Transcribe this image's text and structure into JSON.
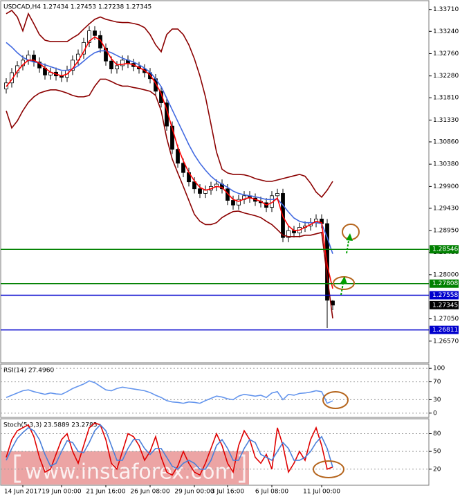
{
  "watermark": "www.instaforex.com",
  "chart_data": [
    {
      "type": "candlestick",
      "title": "USDCAD,H4  1.27434 1.27453 1.27238 1.27345",
      "ylim": [
        1.2612,
        1.3387
      ],
      "yticks": [
        {
          "value": 1.3371,
          "label": "1.33710"
        },
        {
          "value": 1.3324,
          "label": "1.33240"
        },
        {
          "value": 1.3276,
          "label": "1.32760"
        },
        {
          "value": 1.3228,
          "label": "1.32280"
        },
        {
          "value": 1.3181,
          "label": "1.31810"
        },
        {
          "value": 1.3133,
          "label": "1.31330"
        },
        {
          "value": 1.3086,
          "label": "1.30860"
        },
        {
          "value": 1.3038,
          "label": "1.30380"
        },
        {
          "value": 1.299,
          "label": "1.29900"
        },
        {
          "value": 1.2943,
          "label": "1.29430"
        },
        {
          "value": 1.2895,
          "label": "1.28950"
        },
        {
          "value": 1.2848,
          "label": "1.28480"
        },
        {
          "value": 1.28,
          "label": "1.28000"
        },
        {
          "value": 1.2705,
          "label": "1.27050"
        },
        {
          "value": 1.2657,
          "label": "1.26570"
        }
      ],
      "open": [
        1.32,
        1.3213,
        1.3235,
        1.325,
        1.3262,
        1.3273,
        1.3258,
        1.3245,
        1.323,
        1.3236,
        1.3228,
        1.3225,
        1.324,
        1.3262,
        1.3275,
        1.33,
        1.3325,
        1.3315,
        1.3288,
        1.326,
        1.3243,
        1.325,
        1.3262,
        1.3255,
        1.3248,
        1.3243,
        1.3235,
        1.3222,
        1.3195,
        1.317,
        1.312,
        1.307,
        1.304,
        1.302,
        1.3,
        1.2985,
        1.2975,
        1.2982,
        1.299,
        1.2995,
        1.2985,
        1.296,
        1.295,
        1.2962,
        1.297,
        1.2965,
        1.2958,
        1.2955,
        1.2945,
        1.297,
        1.2975,
        1.288,
        1.2895,
        1.289,
        1.2902,
        1.2905,
        1.2912,
        1.292,
        1.291,
        1.27434
      ],
      "high": [
        1.3223,
        1.3245,
        1.326,
        1.3272,
        1.3283,
        1.3283,
        1.3268,
        1.3255,
        1.3246,
        1.3246,
        1.3238,
        1.325,
        1.3272,
        1.3285,
        1.331,
        1.3335,
        1.3335,
        1.3325,
        1.3298,
        1.327,
        1.326,
        1.3272,
        1.3272,
        1.3265,
        1.3258,
        1.3253,
        1.3245,
        1.3232,
        1.3205,
        1.318,
        1.313,
        1.308,
        1.305,
        1.303,
        1.301,
        1.2995,
        1.2992,
        1.3,
        1.3005,
        1.3005,
        1.2995,
        1.297,
        1.2972,
        1.298,
        1.298,
        1.2975,
        1.2968,
        1.2965,
        1.298,
        1.2985,
        1.2985,
        1.2905,
        1.2905,
        1.2912,
        1.2915,
        1.2922,
        1.293,
        1.293,
        1.292,
        1.27453
      ],
      "low": [
        1.319,
        1.3203,
        1.3225,
        1.324,
        1.3252,
        1.3248,
        1.3235,
        1.322,
        1.322,
        1.3218,
        1.3215,
        1.3215,
        1.323,
        1.3252,
        1.3265,
        1.329,
        1.3305,
        1.3278,
        1.325,
        1.3233,
        1.3233,
        1.324,
        1.3245,
        1.3238,
        1.3233,
        1.3225,
        1.3212,
        1.3185,
        1.316,
        1.311,
        1.306,
        1.303,
        1.301,
        1.299,
        1.2975,
        1.2965,
        1.2965,
        1.2972,
        1.298,
        1.2975,
        1.295,
        1.294,
        1.294,
        1.2952,
        1.2955,
        1.2948,
        1.2945,
        1.2935,
        1.2935,
        1.296,
        1.287,
        1.287,
        1.288,
        1.288,
        1.2892,
        1.2895,
        1.2902,
        1.29,
        1.2685,
        1.27238
      ],
      "close": [
        1.3213,
        1.3235,
        1.325,
        1.3262,
        1.3273,
        1.3258,
        1.3245,
        1.323,
        1.3236,
        1.3228,
        1.3225,
        1.324,
        1.3262,
        1.3275,
        1.33,
        1.3325,
        1.3315,
        1.3288,
        1.326,
        1.3243,
        1.325,
        1.3262,
        1.3255,
        1.3248,
        1.3243,
        1.3235,
        1.3222,
        1.3195,
        1.317,
        1.312,
        1.307,
        1.304,
        1.302,
        1.3,
        1.2985,
        1.2975,
        1.2982,
        1.299,
        1.2995,
        1.2985,
        1.296,
        1.295,
        1.2962,
        1.297,
        1.2965,
        1.2958,
        1.2955,
        1.2945,
        1.297,
        1.2975,
        1.288,
        1.2895,
        1.289,
        1.2902,
        1.2905,
        1.2912,
        1.292,
        1.291,
        1.2745,
        1.27345
      ],
      "series": [
        {
          "color": "#8b0000",
          "values": [
            1.3362,
            1.3369,
            1.3355,
            1.3325,
            1.3362,
            1.334,
            1.3317,
            1.3305,
            1.3302,
            1.3302,
            1.3302,
            1.3302,
            1.331,
            1.3317,
            1.3329,
            1.334,
            1.335,
            1.3355,
            1.335,
            1.3347,
            1.3344,
            1.3343,
            1.3343,
            1.3341,
            1.3338,
            1.3332,
            1.3317,
            1.3295,
            1.328,
            1.3317,
            1.3329,
            1.3329,
            1.3317,
            1.3295,
            1.3265,
            1.3228,
            1.3183,
            1.3124,
            1.3064,
            1.3027,
            1.3019,
            1.3016,
            1.3016,
            1.3015,
            1.3012,
            1.3007,
            1.3004,
            1.3001,
            1.3001,
            1.3004,
            1.3007,
            1.301,
            1.3013,
            1.3016,
            1.3012,
            1.2997,
            1.2978,
            1.2967,
            1.2982,
            1.3001
          ]
        },
        {
          "color": "#8b0000",
          "values": [
            1.3153,
            1.3116,
            1.3131,
            1.3153,
            1.3171,
            1.3183,
            1.3191,
            1.3195,
            1.3198,
            1.3198,
            1.3195,
            1.3191,
            1.3186,
            1.3183,
            1.3183,
            1.3186,
            1.3206,
            1.3221,
            1.3221,
            1.3216,
            1.321,
            1.3206,
            1.3206,
            1.3203,
            1.3201,
            1.3198,
            1.3195,
            1.3186,
            1.3153,
            1.3094,
            1.3049,
            1.3019,
            1.299,
            1.296,
            1.293,
            1.2915,
            1.2908,
            1.2908,
            1.2912,
            1.2923,
            1.293,
            1.2936,
            1.2937,
            1.2933,
            1.293,
            1.2927,
            1.2923,
            1.2915,
            1.2908,
            1.2897,
            1.2885,
            1.2882,
            1.2882,
            1.2882,
            1.2885,
            1.2885,
            1.2888,
            1.2891,
            1.2796,
            1.2706
          ]
        },
        {
          "color": "#4169e1",
          "values": [
            1.33,
            1.329,
            1.3278,
            1.3268,
            1.3262,
            1.3258,
            1.3256,
            1.3252,
            1.3248,
            1.3244,
            1.324,
            1.324,
            1.3243,
            1.325,
            1.326,
            1.327,
            1.3278,
            1.3282,
            1.3282,
            1.3278,
            1.3272,
            1.3266,
            1.3262,
            1.3258,
            1.3252,
            1.3245,
            1.3236,
            1.3222,
            1.3205,
            1.318,
            1.3155,
            1.313,
            1.3105,
            1.308,
            1.3058,
            1.304,
            1.3025,
            1.3012,
            1.3002,
            1.2995,
            1.2988,
            1.298,
            1.2975,
            1.2972,
            1.297,
            1.2968,
            1.2965,
            1.2962,
            1.2962,
            1.2963,
            1.295,
            1.2935,
            1.2922,
            1.2915,
            1.2912,
            1.2912,
            1.2912,
            1.291,
            1.288,
            1.2845
          ]
        },
        {
          "color": "#ff0000",
          "values": [
            1.3205,
            1.322,
            1.3238,
            1.3252,
            1.3262,
            1.3262,
            1.3255,
            1.3245,
            1.3236,
            1.3232,
            1.3228,
            1.3232,
            1.3244,
            1.326,
            1.328,
            1.3303,
            1.3312,
            1.3305,
            1.3285,
            1.3265,
            1.3252,
            1.3253,
            1.3255,
            1.3252,
            1.3246,
            1.324,
            1.323,
            1.3212,
            1.319,
            1.3155,
            1.3115,
            1.3075,
            1.3045,
            1.302,
            1.3002,
            1.2988,
            1.2982,
            1.2985,
            1.299,
            1.2988,
            1.2975,
            1.2962,
            1.2958,
            1.2963,
            1.2966,
            1.2962,
            1.2958,
            1.295,
            1.2955,
            1.2965,
            1.2925,
            1.2905,
            1.2895,
            1.2896,
            1.2902,
            1.2908,
            1.2915,
            1.2912,
            1.282,
            1.277
          ]
        }
      ],
      "levels": [
        {
          "value": 1.28546,
          "color": "#008000"
        },
        {
          "value": 1.27808,
          "color": "#008000"
        },
        {
          "value": 1.27558,
          "color": "#0000cd"
        },
        {
          "value": 1.26811,
          "color": "#0000cd"
        }
      ],
      "current_price": 1.27345
    },
    {
      "type": "line",
      "title": "RSI(14) 27.4960",
      "ylim": [
        -8,
        108
      ],
      "yticks": [
        100,
        70,
        30,
        0
      ],
      "grid": true,
      "series": [
        {
          "color": "#6495ed",
          "values": [
            35,
            40,
            45,
            50,
            52,
            48,
            45,
            42,
            45,
            43,
            42,
            48,
            55,
            60,
            65,
            72,
            68,
            60,
            52,
            50,
            55,
            58,
            56,
            54,
            52,
            50,
            46,
            40,
            35,
            28,
            25,
            24,
            22,
            25,
            24,
            22,
            28,
            33,
            38,
            36,
            32,
            30,
            38,
            42,
            40,
            38,
            40,
            35,
            45,
            48,
            30,
            42,
            40,
            44,
            45,
            47,
            50,
            48,
            22,
            27.496
          ]
        }
      ]
    },
    {
      "type": "line",
      "title": "Stoch(5,3,3) 23.5889 23.2785",
      "ylim": [
        -6,
        104
      ],
      "yticks": [
        80,
        50,
        20
      ],
      "grid": true,
      "categories": [
        null,
        null,
        null,
        "14 Jun 2017",
        null,
        null,
        null,
        null,
        null,
        null,
        "19 Jun 00:00",
        null,
        null,
        null,
        null,
        null,
        null,
        null,
        "21 Jun 16:00",
        null,
        null,
        null,
        null,
        null,
        null,
        null,
        "26 Jun 08:00",
        null,
        null,
        null,
        null,
        null,
        null,
        null,
        "29 Jun 00:00",
        null,
        null,
        null,
        null,
        null,
        "3 Jul 16:00",
        null,
        null,
        null,
        null,
        null,
        null,
        null,
        "6 Jul 08:00",
        null,
        null,
        null,
        null,
        null,
        null,
        null,
        null,
        "11 Jul 00:00",
        null,
        null
      ],
      "series": [
        {
          "color": "#e00000",
          "values": [
            40,
            70,
            85,
            90,
            95,
            75,
            40,
            15,
            20,
            45,
            70,
            80,
            50,
            30,
            60,
            90,
            98,
            95,
            70,
            30,
            20,
            50,
            80,
            75,
            60,
            35,
            50,
            75,
            40,
            15,
            10,
            25,
            50,
            30,
            15,
            10,
            30,
            55,
            80,
            60,
            30,
            15,
            60,
            85,
            70,
            40,
            30,
            45,
            20,
            90,
            60,
            15,
            30,
            50,
            35,
            70,
            90,
            60,
            20,
            23.5889
          ]
        },
        {
          "color": "#4a7fd9",
          "values": [
            35,
            55,
            72,
            82,
            90,
            85,
            70,
            45,
            25,
            30,
            50,
            68,
            65,
            50,
            48,
            65,
            85,
            95,
            85,
            60,
            35,
            35,
            55,
            70,
            70,
            55,
            45,
            55,
            55,
            40,
            25,
            20,
            30,
            35,
            30,
            20,
            20,
            35,
            60,
            70,
            55,
            35,
            35,
            55,
            70,
            65,
            45,
            40,
            35,
            50,
            65,
            55,
            35,
            35,
            40,
            50,
            65,
            75,
            55,
            23.2785
          ]
        }
      ]
    }
  ]
}
